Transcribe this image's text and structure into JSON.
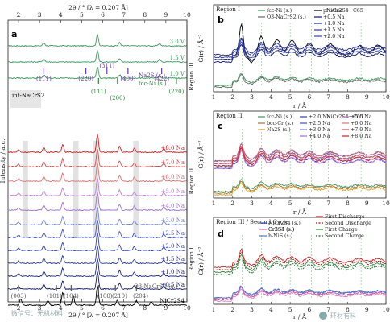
{
  "chart_data": [
    {
      "panel": "a",
      "type": "line",
      "top_axis_label": "2θ / ° [λ = 0.207 Å]",
      "bottom_axis_label": "2θ / ° [λ = 0.207 Å]",
      "ylabel": "Intensity / a.u.",
      "xlim": [
        1.5,
        10
      ],
      "x_ticks": [
        "2",
        "3",
        "4",
        "5",
        "6",
        "7",
        "8",
        "9",
        "10"
      ],
      "series": [
        {
          "name": "3.0 V",
          "color": "#3a9a5a"
        },
        {
          "name": "1.5 V",
          "color": "#3a9a5a"
        },
        {
          "name": "1.0 V",
          "color": "#3a9a5a"
        },
        {
          "name": "+8.0 Na",
          "color": "#d02020"
        },
        {
          "name": "+7.0 Na",
          "color": "#d84848"
        },
        {
          "name": "+6.0 Na",
          "color": "#e07070"
        },
        {
          "name": "+5.0 Na",
          "color": "#c080d8"
        },
        {
          "name": "+4.0 Na",
          "color": "#a070d0"
        },
        {
          "name": "+3.0 Na",
          "color": "#7080d8"
        },
        {
          "name": "+2.5 Na",
          "color": "#4050c8"
        },
        {
          "name": "+2.0 Na",
          "color": "#3040b8"
        },
        {
          "name": "+1.5 Na",
          "color": "#2a38a8"
        },
        {
          "name": "+1.0 Na",
          "color": "#1a2890"
        },
        {
          "name": "+0.5 Na",
          "color": "#10186a"
        },
        {
          "name": "NiCr2S4",
          "color": "#000000"
        }
      ],
      "reference_labels": [
        "Na2S (s.)",
        "fcc-Ni (s.)",
        "int-NaCrS2",
        "O3-NaCrS2 (s.)"
      ],
      "miller_na2s": [
        "(111)",
        "(220)",
        "(311)",
        "(400)",
        "(422)"
      ],
      "miller_ni": [
        "(111)",
        "(200)",
        "(220)"
      ],
      "miller_o3": [
        "(003)",
        "(101)",
        "(104)",
        "(108)",
        "(210)",
        "(204)"
      ],
      "regions": [
        "Region III",
        "Region II",
        "Region I"
      ]
    },
    {
      "panel": "b",
      "type": "line",
      "title": "Region I",
      "xlabel": "r / Å",
      "ylabel": "G(r) / Å⁻²",
      "xlim": [
        1,
        10
      ],
      "x_ticks": [
        "1",
        "2",
        "3",
        "4",
        "5",
        "6",
        "7",
        "8",
        "9",
        "10"
      ],
      "series": [
        {
          "name": "fcc-Ni (s.)",
          "color": "#3a9a5a"
        },
        {
          "name": "O3-NaCrS2 (s.)",
          "color": "#666666"
        },
        {
          "name": "pristine",
          "color": "#000000"
        },
        {
          "name": "+0.5 Na",
          "color": "#10186a"
        },
        {
          "name": "+1.0 Na",
          "color": "#1a2890"
        },
        {
          "name": "+1.5 Na",
          "color": "#2a38a8"
        },
        {
          "name": "+2.0 Na",
          "color": "#3040b8"
        }
      ],
      "legend_title": "NiCr2S4+C65"
    },
    {
      "panel": "c",
      "type": "line",
      "title": "Region II",
      "xlabel": "r / Å",
      "ylabel": "G(r) / Å⁻²",
      "xlim": [
        1,
        10
      ],
      "x_ticks": [
        "1",
        "2",
        "3",
        "4",
        "5",
        "6",
        "7",
        "8",
        "9",
        "10"
      ],
      "series": [
        {
          "name": "fcc-Ni (s.)",
          "color": "#3a9a5a"
        },
        {
          "name": "bcc-Cr (s.)",
          "color": "#b07030"
        },
        {
          "name": "Na2S (s.)",
          "color": "#d0a020"
        },
        {
          "name": "+2.0 Na",
          "color": "#3040b8"
        },
        {
          "name": "+2.5 Na",
          "color": "#4050c8"
        },
        {
          "name": "+3.0 Na",
          "color": "#7080d8"
        },
        {
          "name": "+4.0 Na",
          "color": "#a070d0"
        },
        {
          "name": "+5.0 Na",
          "color": "#c080d8"
        },
        {
          "name": "+6.0 Na",
          "color": "#e07070"
        },
        {
          "name": "+7.0 Na",
          "color": "#d84848"
        },
        {
          "name": "+8.0 Na",
          "color": "#d02020"
        }
      ],
      "legend_title": "NiCr2S4+C65"
    },
    {
      "panel": "d",
      "type": "line",
      "title": "Region III / Second Cycle",
      "xlabel": "r / Å",
      "ylabel": "G(r) / Å⁻²",
      "xlim": [
        1,
        10
      ],
      "x_ticks": [
        "1",
        "2",
        "3",
        "4",
        "5",
        "6",
        "7",
        "8",
        "9",
        "10"
      ],
      "series": [
        {
          "name": "NiCr2S4 (s.)",
          "color": "#4a56b8"
        },
        {
          "name": "Cr2S3 (s.)",
          "color": "#d040a0"
        },
        {
          "name": "Cr3S4 (s.)",
          "color": "#e080c0"
        },
        {
          "name": "h-NiS (s.)",
          "color": "#5080d0"
        },
        {
          "name": "First Discharge",
          "color": "#d02020"
        },
        {
          "name": "Second Discharge",
          "color": "#a01010"
        },
        {
          "name": "First Charge",
          "color": "#2a8a3a"
        },
        {
          "name": "Second Charge",
          "color": "#1a6a2a"
        }
      ]
    }
  ],
  "watermark_left": "微信号：无机材料",
  "watermark_right": "环材有料",
  "panel_letters": [
    "a",
    "b",
    "c",
    "d"
  ]
}
